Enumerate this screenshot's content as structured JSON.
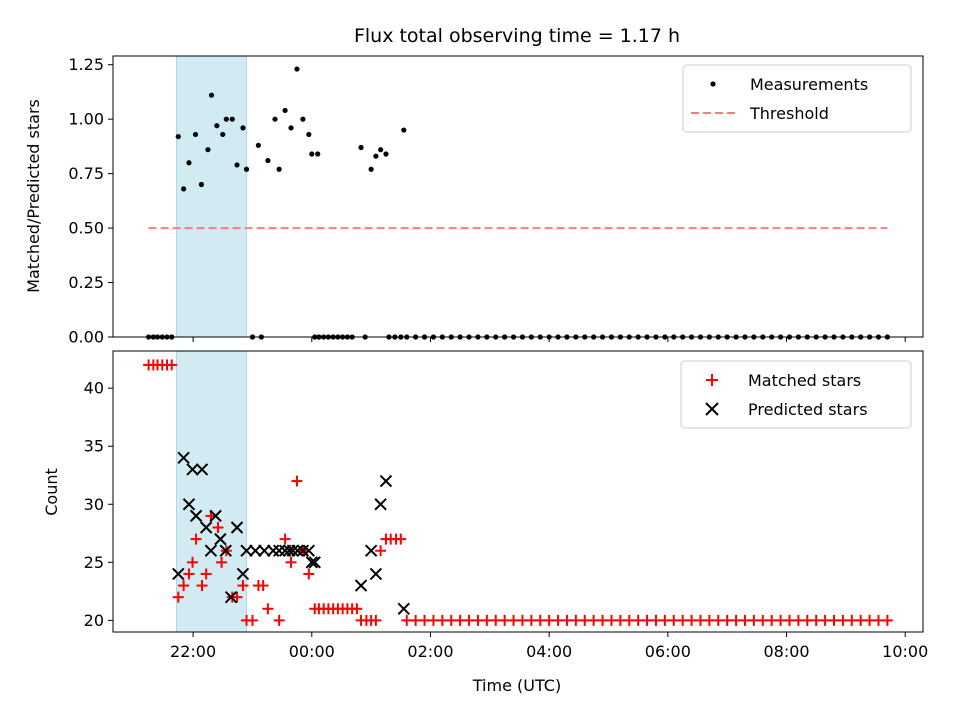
{
  "title": "Flux total observing time = 1.17 h",
  "x_axis": {
    "label": "Time (UTC)",
    "tick_hours": [
      22,
      24,
      26,
      28,
      30,
      32,
      34
    ],
    "tick_labels": [
      "22:00",
      "00:00",
      "02:00",
      "04:00",
      "06:00",
      "08:00",
      "10:00"
    ],
    "range_hours": [
      20.65,
      34.3
    ]
  },
  "colors": {
    "highlight": "#add8e6",
    "threshold": "#ff7b7b",
    "matched": "#ff0000",
    "predicted": "#000000",
    "measurements": "#000000"
  },
  "chart_data": [
    {
      "type": "scatter",
      "panel": "top",
      "ylabel": "Matched/Predicted stars",
      "ylim": [
        0,
        1.29
      ],
      "y_ticks": [
        0.0,
        0.25,
        0.5,
        0.75,
        1.0,
        1.25
      ],
      "y_tick_labels": [
        "0.00",
        "0.25",
        "0.50",
        "0.75",
        "1.00",
        "1.25"
      ],
      "highlight_span_hours": [
        21.72,
        22.9
      ],
      "legend": {
        "position": "top-right",
        "entries": [
          "Measurements",
          "Threshold"
        ]
      },
      "series": [
        {
          "name": "Measurements",
          "marker": "dot",
          "points": [
            [
              21.75,
              0.92
            ],
            [
              21.84,
              0.68
            ],
            [
              21.93,
              0.8
            ],
            [
              22.04,
              0.93
            ],
            [
              22.14,
              0.7
            ],
            [
              22.25,
              0.86
            ],
            [
              22.31,
              1.11
            ],
            [
              22.4,
              0.97
            ],
            [
              22.5,
              0.93
            ],
            [
              22.56,
              1.0
            ],
            [
              22.66,
              1.0
            ],
            [
              22.74,
              0.79
            ],
            [
              22.84,
              0.96
            ],
            [
              22.9,
              0.77
            ],
            [
              23.1,
              0.88
            ],
            [
              23.26,
              0.81
            ],
            [
              23.38,
              1.0
            ],
            [
              23.45,
              0.77
            ],
            [
              23.55,
              1.04
            ],
            [
              23.65,
              0.96
            ],
            [
              23.75,
              1.23
            ],
            [
              23.85,
              1.0
            ],
            [
              23.95,
              0.93
            ],
            [
              24.0,
              0.84
            ],
            [
              24.1,
              0.84
            ],
            [
              24.83,
              0.87
            ],
            [
              25.0,
              0.77
            ],
            [
              25.08,
              0.83
            ],
            [
              25.16,
              0.86
            ],
            [
              25.25,
              0.84
            ],
            [
              25.55,
              0.95
            ],
            [
              21.25,
              0
            ],
            [
              21.33,
              0
            ],
            [
              21.4,
              0
            ],
            [
              21.48,
              0
            ],
            [
              21.56,
              0
            ],
            [
              21.64,
              0
            ],
            [
              23.0,
              0
            ],
            [
              23.15,
              0
            ],
            [
              24.05,
              0
            ],
            [
              24.12,
              0
            ],
            [
              24.2,
              0
            ],
            [
              24.28,
              0
            ],
            [
              24.36,
              0
            ],
            [
              24.44,
              0
            ],
            [
              24.52,
              0
            ],
            [
              24.6,
              0
            ],
            [
              24.68,
              0
            ],
            [
              24.9,
              0
            ],
            [
              25.3,
              0
            ],
            [
              25.4,
              0
            ],
            [
              25.5,
              0
            ],
            [
              25.6,
              0
            ],
            [
              25.75,
              0
            ],
            [
              25.9,
              0
            ],
            [
              26.05,
              0
            ],
            [
              26.2,
              0
            ],
            [
              26.35,
              0
            ],
            [
              26.5,
              0
            ],
            [
              26.65,
              0
            ],
            [
              26.8,
              0
            ],
            [
              26.95,
              0
            ],
            [
              27.1,
              0
            ],
            [
              27.25,
              0
            ],
            [
              27.4,
              0
            ],
            [
              27.55,
              0
            ],
            [
              27.7,
              0
            ],
            [
              27.85,
              0
            ],
            [
              28.0,
              0
            ],
            [
              28.15,
              0
            ],
            [
              28.3,
              0
            ],
            [
              28.45,
              0
            ],
            [
              28.6,
              0
            ],
            [
              28.75,
              0
            ],
            [
              28.9,
              0
            ],
            [
              29.05,
              0
            ],
            [
              29.2,
              0
            ],
            [
              29.35,
              0
            ],
            [
              29.5,
              0
            ],
            [
              29.65,
              0
            ],
            [
              29.8,
              0
            ],
            [
              29.95,
              0
            ],
            [
              30.1,
              0
            ],
            [
              30.25,
              0
            ],
            [
              30.4,
              0
            ],
            [
              30.55,
              0
            ],
            [
              30.7,
              0
            ],
            [
              30.85,
              0
            ],
            [
              31.0,
              0
            ],
            [
              31.15,
              0
            ],
            [
              31.3,
              0
            ],
            [
              31.45,
              0
            ],
            [
              31.6,
              0
            ],
            [
              31.75,
              0
            ],
            [
              31.9,
              0
            ],
            [
              32.05,
              0
            ],
            [
              32.2,
              0
            ],
            [
              32.35,
              0
            ],
            [
              32.5,
              0
            ],
            [
              32.65,
              0
            ],
            [
              32.8,
              0
            ],
            [
              32.95,
              0
            ],
            [
              33.1,
              0
            ],
            [
              33.25,
              0
            ],
            [
              33.4,
              0
            ],
            [
              33.55,
              0
            ],
            [
              33.7,
              0
            ]
          ]
        },
        {
          "name": "Threshold",
          "marker": "dashed-line",
          "points": [
            [
              21.25,
              0.5
            ],
            [
              33.7,
              0.5
            ]
          ]
        }
      ]
    },
    {
      "type": "scatter",
      "panel": "bottom",
      "xlabel": "Time (UTC)",
      "ylabel": "Count",
      "ylim": [
        19,
        43.2
      ],
      "y_ticks": [
        20,
        25,
        30,
        35,
        40
      ],
      "y_tick_labels": [
        "20",
        "25",
        "30",
        "35",
        "40"
      ],
      "highlight_span_hours": [
        21.72,
        22.9
      ],
      "legend": {
        "position": "top-right",
        "entries": [
          "Matched stars",
          "Predicted stars"
        ]
      },
      "series": [
        {
          "name": "Matched stars",
          "marker": "plus",
          "points": [
            [
              21.25,
              42
            ],
            [
              21.33,
              42
            ],
            [
              21.4,
              42
            ],
            [
              21.48,
              42
            ],
            [
              21.56,
              42
            ],
            [
              21.64,
              42
            ],
            [
              21.75,
              22
            ],
            [
              21.84,
              23
            ],
            [
              21.93,
              24
            ],
            [
              21.99,
              25
            ],
            [
              22.05,
              27
            ],
            [
              22.15,
              23
            ],
            [
              22.22,
              24
            ],
            [
              22.3,
              29
            ],
            [
              22.42,
              28
            ],
            [
              22.48,
              25
            ],
            [
              22.56,
              26
            ],
            [
              22.66,
              22
            ],
            [
              22.74,
              22
            ],
            [
              22.84,
              23
            ],
            [
              22.9,
              20
            ],
            [
              23.0,
              20
            ],
            [
              23.1,
              23
            ],
            [
              23.18,
              23
            ],
            [
              23.26,
              21
            ],
            [
              23.45,
              20
            ],
            [
              23.55,
              27
            ],
            [
              23.65,
              25
            ],
            [
              23.75,
              32
            ],
            [
              23.85,
              26
            ],
            [
              23.95,
              24
            ],
            [
              24.05,
              21
            ],
            [
              24.12,
              21
            ],
            [
              24.2,
              21
            ],
            [
              24.28,
              21
            ],
            [
              24.36,
              21
            ],
            [
              24.44,
              21
            ],
            [
              24.52,
              21
            ],
            [
              24.6,
              21
            ],
            [
              24.68,
              21
            ],
            [
              24.76,
              21
            ],
            [
              24.83,
              20
            ],
            [
              24.92,
              20
            ],
            [
              25.0,
              20
            ],
            [
              25.08,
              20
            ],
            [
              25.16,
              26
            ],
            [
              25.25,
              27
            ],
            [
              25.33,
              27
            ],
            [
              25.42,
              27
            ],
            [
              25.5,
              27
            ],
            [
              25.6,
              20
            ],
            [
              25.75,
              20
            ],
            [
              25.9,
              20
            ],
            [
              26.05,
              20
            ],
            [
              26.2,
              20
            ],
            [
              26.35,
              20
            ],
            [
              26.5,
              20
            ],
            [
              26.65,
              20
            ],
            [
              26.8,
              20
            ],
            [
              26.95,
              20
            ],
            [
              27.1,
              20
            ],
            [
              27.25,
              20
            ],
            [
              27.4,
              20
            ],
            [
              27.55,
              20
            ],
            [
              27.7,
              20
            ],
            [
              27.85,
              20
            ],
            [
              28.0,
              20
            ],
            [
              28.15,
              20
            ],
            [
              28.3,
              20
            ],
            [
              28.45,
              20
            ],
            [
              28.6,
              20
            ],
            [
              28.75,
              20
            ],
            [
              28.9,
              20
            ],
            [
              29.05,
              20
            ],
            [
              29.2,
              20
            ],
            [
              29.35,
              20
            ],
            [
              29.5,
              20
            ],
            [
              29.65,
              20
            ],
            [
              29.8,
              20
            ],
            [
              29.95,
              20
            ],
            [
              30.1,
              20
            ],
            [
              30.25,
              20
            ],
            [
              30.4,
              20
            ],
            [
              30.55,
              20
            ],
            [
              30.7,
              20
            ],
            [
              30.85,
              20
            ],
            [
              31.0,
              20
            ],
            [
              31.15,
              20
            ],
            [
              31.3,
              20
            ],
            [
              31.45,
              20
            ],
            [
              31.6,
              20
            ],
            [
              31.75,
              20
            ],
            [
              31.9,
              20
            ],
            [
              32.05,
              20
            ],
            [
              32.2,
              20
            ],
            [
              32.35,
              20
            ],
            [
              32.5,
              20
            ],
            [
              32.65,
              20
            ],
            [
              32.8,
              20
            ],
            [
              32.95,
              20
            ],
            [
              33.1,
              20
            ],
            [
              33.25,
              20
            ],
            [
              33.4,
              20
            ],
            [
              33.55,
              20
            ],
            [
              33.7,
              20
            ]
          ]
        },
        {
          "name": "Predicted stars",
          "marker": "x",
          "points": [
            [
              21.75,
              24
            ],
            [
              21.84,
              34
            ],
            [
              21.93,
              30
            ],
            [
              21.99,
              33
            ],
            [
              22.05,
              29
            ],
            [
              22.15,
              33
            ],
            [
              22.22,
              28
            ],
            [
              22.3,
              26
            ],
            [
              22.38,
              29
            ],
            [
              22.46,
              27
            ],
            [
              22.55,
              26
            ],
            [
              22.64,
              22
            ],
            [
              22.74,
              28
            ],
            [
              22.84,
              24
            ],
            [
              22.9,
              26
            ],
            [
              23.05,
              26
            ],
            [
              23.2,
              26
            ],
            [
              23.35,
              26
            ],
            [
              23.45,
              26
            ],
            [
              23.55,
              26
            ],
            [
              23.62,
              26
            ],
            [
              23.68,
              26
            ],
            [
              23.76,
              26
            ],
            [
              23.85,
              26
            ],
            [
              23.95,
              26
            ],
            [
              24.0,
              25
            ],
            [
              24.05,
              25
            ],
            [
              24.83,
              23
            ],
            [
              25.0,
              26
            ],
            [
              25.08,
              24
            ],
            [
              25.16,
              30
            ],
            [
              25.25,
              32
            ],
            [
              25.55,
              21
            ]
          ]
        }
      ]
    }
  ]
}
